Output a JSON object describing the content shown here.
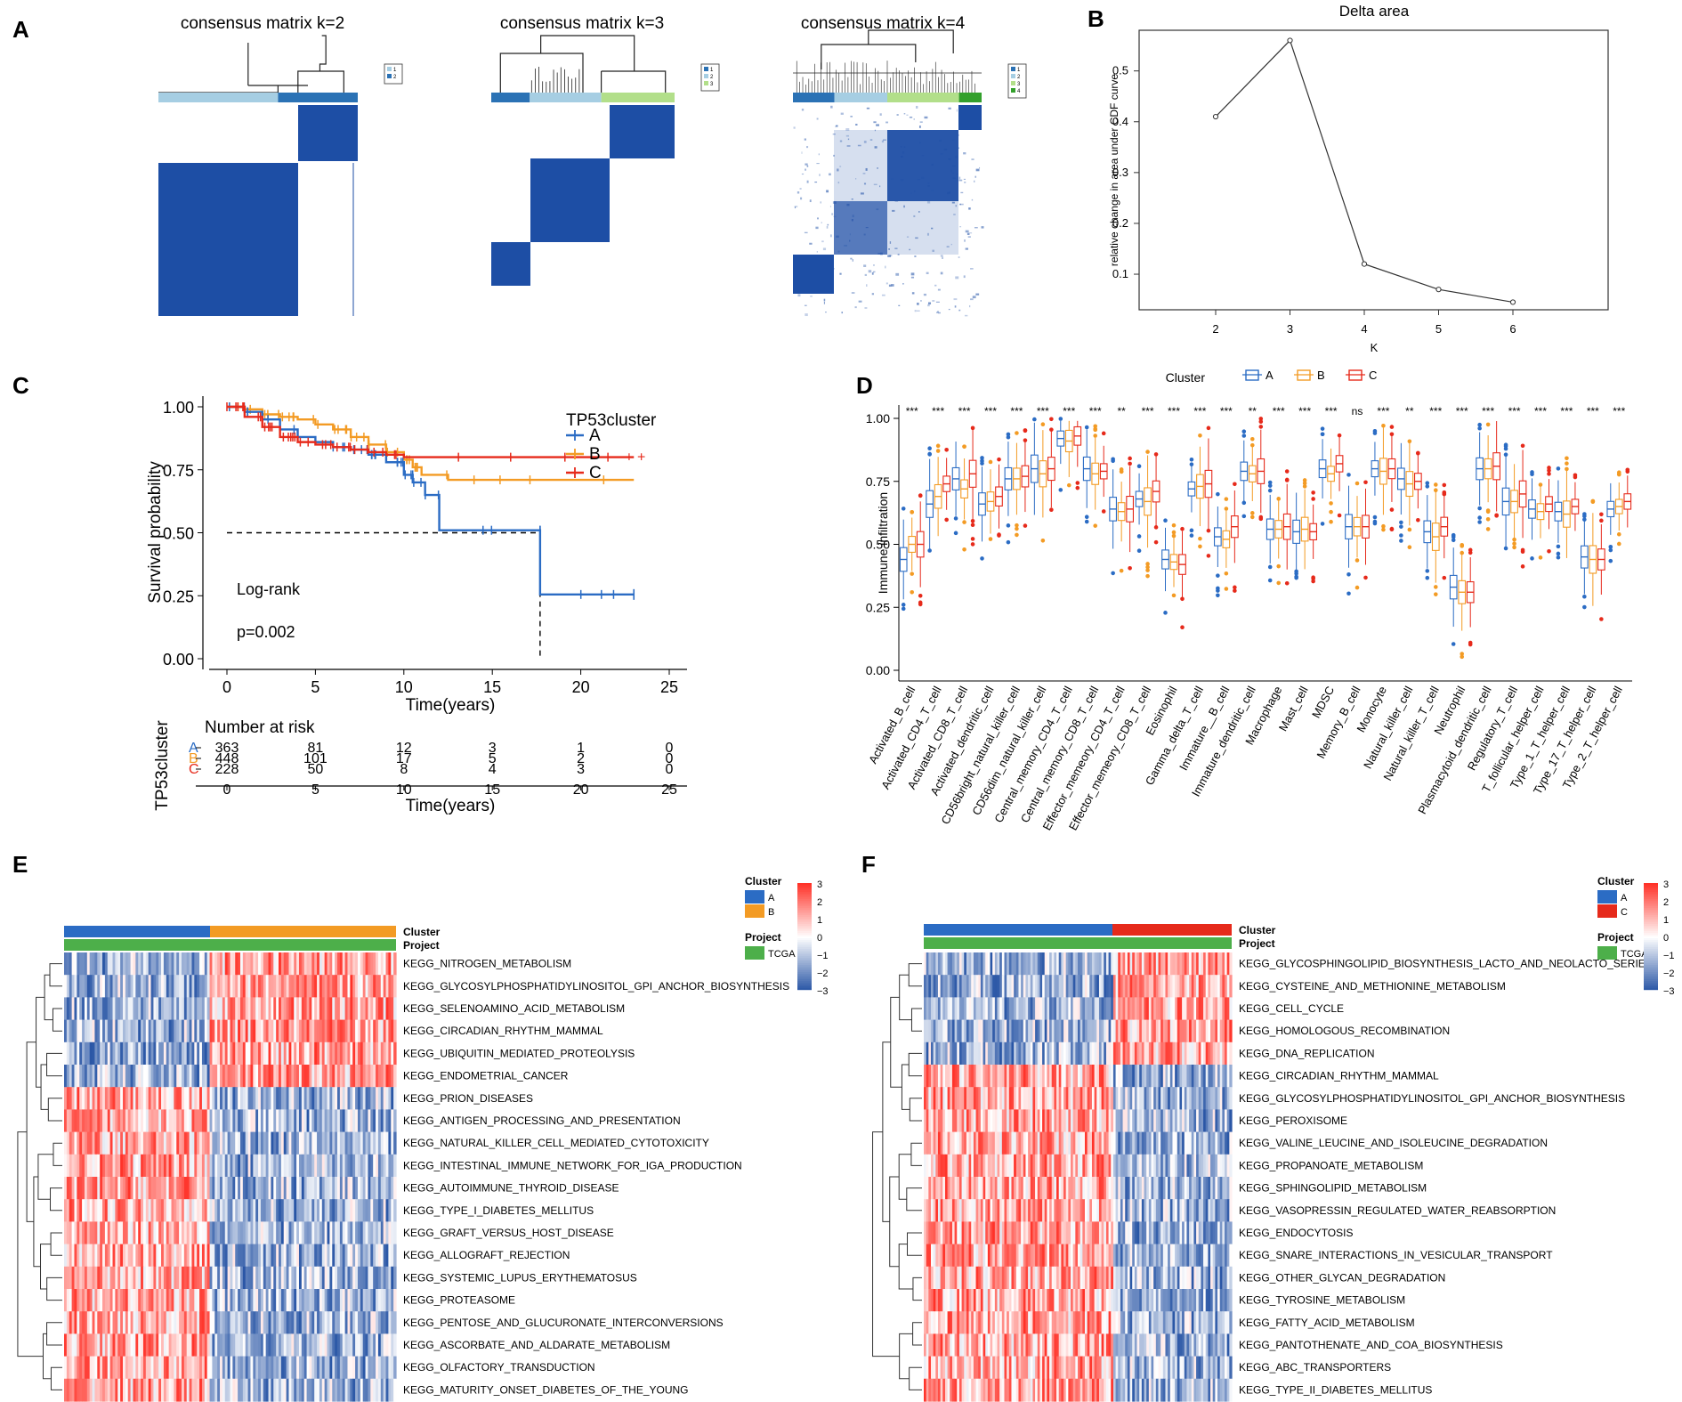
{
  "panels": {
    "A": "A",
    "B": "B",
    "C": "C",
    "D": "D",
    "E": "E",
    "F": "F"
  },
  "colors": {
    "blue": "#1d4ea5",
    "light_blue": "#a6cee3",
    "mid_blue": "#2b72b5",
    "light_green": "#b2df8a",
    "green": "#33a02c",
    "orange": "#f39b24",
    "red": "#e62a1b",
    "teal_green": "#4daf4a",
    "heat_hi": "#d73027",
    "heat_lo": "#2c4ea3"
  },
  "chart_data": [
    {
      "id": "A",
      "type": "heatmap",
      "panel_label": "A",
      "matrices": [
        {
          "title": "consensus matrix k=2",
          "legend": [
            "1",
            "2"
          ],
          "sample_groups": 2,
          "group_colors": [
            "#a6cee3",
            "#1f78b4"
          ]
        },
        {
          "title": "consensus matrix k=3",
          "legend": [
            "1",
            "2",
            "3"
          ],
          "sample_groups": 3,
          "group_colors": [
            "#2b72b5",
            "#a6cee3",
            "#b2df8a"
          ]
        },
        {
          "title": "consensus matrix k=4",
          "legend": [
            "1",
            "2",
            "3",
            "4"
          ],
          "sample_groups": 4,
          "group_colors": [
            "#2b72b5",
            "#a6cee3",
            "#b2df8a",
            "#33a02c"
          ]
        }
      ]
    },
    {
      "id": "B",
      "type": "line",
      "panel_label": "B",
      "title": "Delta area",
      "xlabel": "K",
      "ylabel": "relative change in area under CDF curve",
      "x": [
        2,
        3,
        4,
        5,
        6
      ],
      "y": [
        0.41,
        0.56,
        0.12,
        0.07,
        0.045
      ],
      "xticks": [
        "2",
        "3",
        "4",
        "5",
        "6"
      ],
      "yticks": [
        "0.1",
        "0.2",
        "0.3",
        "0.4",
        "0.5"
      ],
      "ylim": [
        0.03,
        0.58
      ]
    },
    {
      "id": "C",
      "type": "line",
      "panel_label": "C",
      "xlabel": "Time(years)",
      "ylabel": "Survival probability",
      "legend_title": "TP53cluster",
      "xlim": [
        0,
        25
      ],
      "ylim": [
        0,
        1
      ],
      "xticks": [
        "0",
        "5",
        "10",
        "15",
        "20",
        "25"
      ],
      "yticks": [
        "0.00",
        "0.25",
        "0.50",
        "0.75",
        "1.00"
      ],
      "median_line": 0.5,
      "median_time": 17.7,
      "annotation_test": "Log-rank",
      "annotation_p": "p=0.002",
      "series": [
        {
          "name": "A",
          "color": "#2b6cc4",
          "steps": [
            [
              0,
              1.0
            ],
            [
              1,
              0.98
            ],
            [
              2,
              0.95
            ],
            [
              3,
              0.91
            ],
            [
              4,
              0.88
            ],
            [
              5,
              0.86
            ],
            [
              6,
              0.84
            ],
            [
              7,
              0.83
            ],
            [
              8,
              0.81
            ],
            [
              9,
              0.78
            ],
            [
              10,
              0.73
            ],
            [
              10.5,
              0.7
            ],
            [
              11.2,
              0.65
            ],
            [
              12,
              0.51
            ],
            [
              17.7,
              0.51
            ],
            [
              17.7,
              0.255
            ],
            [
              23,
              0.255
            ]
          ]
        },
        {
          "name": "B",
          "color": "#f39b24",
          "steps": [
            [
              0,
              1.0
            ],
            [
              1,
              0.99
            ],
            [
              2,
              0.97
            ],
            [
              3,
              0.96
            ],
            [
              4,
              0.95
            ],
            [
              5,
              0.93
            ],
            [
              6,
              0.91
            ],
            [
              7,
              0.88
            ],
            [
              8,
              0.85
            ],
            [
              9,
              0.82
            ],
            [
              10,
              0.79
            ],
            [
              10.5,
              0.76
            ],
            [
              11,
              0.73
            ],
            [
              12.5,
              0.71
            ],
            [
              23,
              0.71
            ]
          ]
        },
        {
          "name": "C",
          "color": "#e62a1b",
          "steps": [
            [
              0,
              1.0
            ],
            [
              1,
              0.96
            ],
            [
              2,
              0.92
            ],
            [
              3,
              0.88
            ],
            [
              4,
              0.86
            ],
            [
              5,
              0.85
            ],
            [
              6,
              0.84
            ],
            [
              7,
              0.83
            ],
            [
              8,
              0.82
            ],
            [
              9,
              0.81
            ],
            [
              10,
              0.8
            ],
            [
              23,
              0.8
            ]
          ]
        }
      ],
      "risk_table": {
        "title": "Number at risk",
        "row_label": "TP53cluster",
        "xlabel": "Time(years)",
        "times": [
          "0",
          "5",
          "10",
          "15",
          "20",
          "25"
        ],
        "rows": [
          {
            "name": "A",
            "color": "#2b6cc4",
            "values": [
              "363",
              "81",
              "12",
              "3",
              "1",
              "0"
            ]
          },
          {
            "name": "B",
            "color": "#f39b24",
            "values": [
              "448",
              "101",
              "17",
              "5",
              "2",
              "0"
            ]
          },
          {
            "name": "C",
            "color": "#e62a1b",
            "values": [
              "228",
              "50",
              "8",
              "4",
              "3",
              "0"
            ]
          }
        ]
      }
    },
    {
      "id": "D",
      "type": "box",
      "panel_label": "D",
      "ylabel": "Immune infiltration",
      "legend_title": "Cluster",
      "legend": [
        {
          "name": "A",
          "color": "#2b6cc4"
        },
        {
          "name": "B",
          "color": "#f39b24"
        },
        {
          "name": "C",
          "color": "#e62a1b"
        }
      ],
      "ylim": [
        0,
        1
      ],
      "yticks": [
        "0.00",
        "0.25",
        "0.50",
        "0.75",
        "1.00"
      ],
      "categories": [
        "Activated_B_cell",
        "Activated_CD4_T_cell",
        "Activated_CD8_T_cell",
        "Activated_dendritic_cell",
        "CD56bright_natural_killer_cell",
        "CD56dim_natural_killer_cell",
        "Central_memory_CD4_T_cell",
        "Central_memory_CD8_T_cell",
        "Effector_memeory_CD4_T_cell",
        "Effector_memeory_CD8_T_cell",
        "Eosinophil",
        "Gamma_delta_T_cell",
        "Immature__B_cell",
        "Immature_dendritic_cell",
        "Macrophage",
        "Mast_cell",
        "MDSC",
        "Memory_B_cell",
        "Monocyte",
        "Natural_killer_cell",
        "Natural_killer_T_cell",
        "Neutrophil",
        "Plasmacytoid_dendritic_cell",
        "Regulatory_T_cell",
        "T_follicular_helper_cell",
        "Type_1_T_helper_cell",
        "Type_17_T_helper_cell",
        "Type_2_T_helper_cell"
      ],
      "significance": [
        "***",
        "***",
        "***",
        "***",
        "***",
        "***",
        "***",
        "***",
        "**",
        "***",
        "***",
        "***",
        "***",
        "**",
        "***",
        "***",
        "***",
        "ns",
        "***",
        "**",
        "***",
        "***",
        "***",
        "***",
        "***",
        "***",
        "***",
        "***"
      ],
      "medians": {
        "A": [
          0.44,
          0.66,
          0.76,
          0.66,
          0.76,
          0.8,
          0.92,
          0.8,
          0.64,
          0.68,
          0.44,
          0.72,
          0.53,
          0.79,
          0.56,
          0.55,
          0.8,
          0.57,
          0.8,
          0.76,
          0.55,
          0.33,
          0.8,
          0.67,
          0.64,
          0.63,
          0.45,
          0.64
        ],
        "B": [
          0.5,
          0.69,
          0.72,
          0.67,
          0.76,
          0.78,
          0.91,
          0.78,
          0.63,
          0.67,
          0.43,
          0.73,
          0.52,
          0.78,
          0.56,
          0.56,
          0.78,
          0.57,
          0.79,
          0.74,
          0.53,
          0.31,
          0.8,
          0.67,
          0.63,
          0.62,
          0.44,
          0.65
        ],
        "C": [
          0.5,
          0.74,
          0.78,
          0.69,
          0.77,
          0.8,
          0.93,
          0.79,
          0.64,
          0.71,
          0.42,
          0.74,
          0.57,
          0.79,
          0.57,
          0.55,
          0.82,
          0.57,
          0.8,
          0.75,
          0.57,
          0.31,
          0.81,
          0.7,
          0.66,
          0.65,
          0.44,
          0.67
        ]
      }
    },
    {
      "id": "E",
      "type": "heatmap",
      "panel_label": "E",
      "annotations": [
        "Cluster",
        "Project"
      ],
      "legend_cluster_title": "Cluster",
      "legend_cluster": [
        {
          "name": "A",
          "color": "#2b6cc4"
        },
        {
          "name": "B",
          "color": "#f39b24"
        }
      ],
      "legend_project_title": "Project",
      "legend_project": [
        {
          "name": "TCGA",
          "color": "#4daf4a"
        }
      ],
      "scale_ticks": [
        "3",
        "2",
        "1",
        "0",
        "−1",
        "−2",
        "−3"
      ],
      "rows": [
        "KEGG_NITROGEN_METABOLISM",
        "KEGG_GLYCOSYLPHOSPHATIDYLINOSITOL_GPI_ANCHOR_BIOSYNTHESIS",
        "KEGG_SELENOAMINO_ACID_METABOLISM",
        "KEGG_CIRCADIAN_RHYTHM_MAMMAL",
        "KEGG_UBIQUITIN_MEDIATED_PROTEOLYSIS",
        "KEGG_ENDOMETRIAL_CANCER",
        "KEGG_PRION_DISEASES",
        "KEGG_ANTIGEN_PROCESSING_AND_PRESENTATION",
        "KEGG_NATURAL_KILLER_CELL_MEDIATED_CYTOTOXICITY",
        "KEGG_INTESTINAL_IMMUNE_NETWORK_FOR_IGA_PRODUCTION",
        "KEGG_AUTOIMMUNE_THYROID_DISEASE",
        "KEGG_TYPE_I_DIABETES_MELLITUS",
        "KEGG_GRAFT_VERSUS_HOST_DISEASE",
        "KEGG_ALLOGRAFT_REJECTION",
        "KEGG_SYSTEMIC_LUPUS_ERYTHEMATOSUS",
        "KEGG_PROTEASOME",
        "KEGG_PENTOSE_AND_GLUCURONATE_INTERCONVERSIONS",
        "KEGG_ASCORBATE_AND_ALDARATE_METABOLISM",
        "KEGG_OLFACTORY_TRANSDUCTION",
        "KEGG_MATURITY_ONSET_DIABETES_OF_THE_YOUNG"
      ],
      "row_bias": [
        -1,
        -1,
        -1,
        -1,
        -1,
        -1,
        1,
        1,
        1,
        1,
        1,
        1,
        1,
        1,
        1,
        1,
        1,
        1,
        1,
        1
      ]
    },
    {
      "id": "F",
      "type": "heatmap",
      "panel_label": "F",
      "annotations": [
        "Cluster",
        "Project"
      ],
      "legend_cluster_title": "Cluster",
      "legend_cluster": [
        {
          "name": "A",
          "color": "#2b6cc4"
        },
        {
          "name": "C",
          "color": "#e62a1b"
        }
      ],
      "legend_project_title": "Project",
      "legend_project": [
        {
          "name": "TCGA",
          "color": "#4daf4a"
        }
      ],
      "scale_ticks": [
        "3",
        "2",
        "1",
        "0",
        "−1",
        "−2",
        "−3"
      ],
      "rows": [
        "KEGG_GLYCOSPHINGOLIPID_BIOSYNTHESIS_LACTO_AND_NEOLACTO_SERIES",
        "KEGG_CYSTEINE_AND_METHIONINE_METABOLISM",
        "KEGG_CELL_CYCLE",
        "KEGG_HOMOLOGOUS_RECOMBINATION",
        "KEGG_DNA_REPLICATION",
        "KEGG_CIRCADIAN_RHYTHM_MAMMAL",
        "KEGG_GLYCOSYLPHOSPHATIDYLINOSITOL_GPI_ANCHOR_BIOSYNTHESIS",
        "KEGG_PEROXISOME",
        "KEGG_VALINE_LEUCINE_AND_ISOLEUCINE_DEGRADATION",
        "KEGG_PROPANOATE_METABOLISM",
        "KEGG_SPHINGOLIPID_METABOLISM",
        "KEGG_VASOPRESSIN_REGULATED_WATER_REABSORPTION",
        "KEGG_ENDOCYTOSIS",
        "KEGG_SNARE_INTERACTIONS_IN_VESICULAR_TRANSPORT",
        "KEGG_OTHER_GLYCAN_DEGRADATION",
        "KEGG_TYROSINE_METABOLISM",
        "KEGG_FATTY_ACID_METABOLISM",
        "KEGG_PANTOTHENATE_AND_COA_BIOSYNTHESIS",
        "KEGG_ABC_TRANSPORTERS",
        "KEGG_TYPE_II_DIABETES_MELLITUS"
      ],
      "row_bias": [
        -1,
        -1,
        -1,
        -1,
        -1,
        1,
        1,
        1,
        1,
        1,
        1,
        1,
        1,
        1,
        1,
        1,
        1,
        1,
        1,
        1
      ]
    }
  ]
}
